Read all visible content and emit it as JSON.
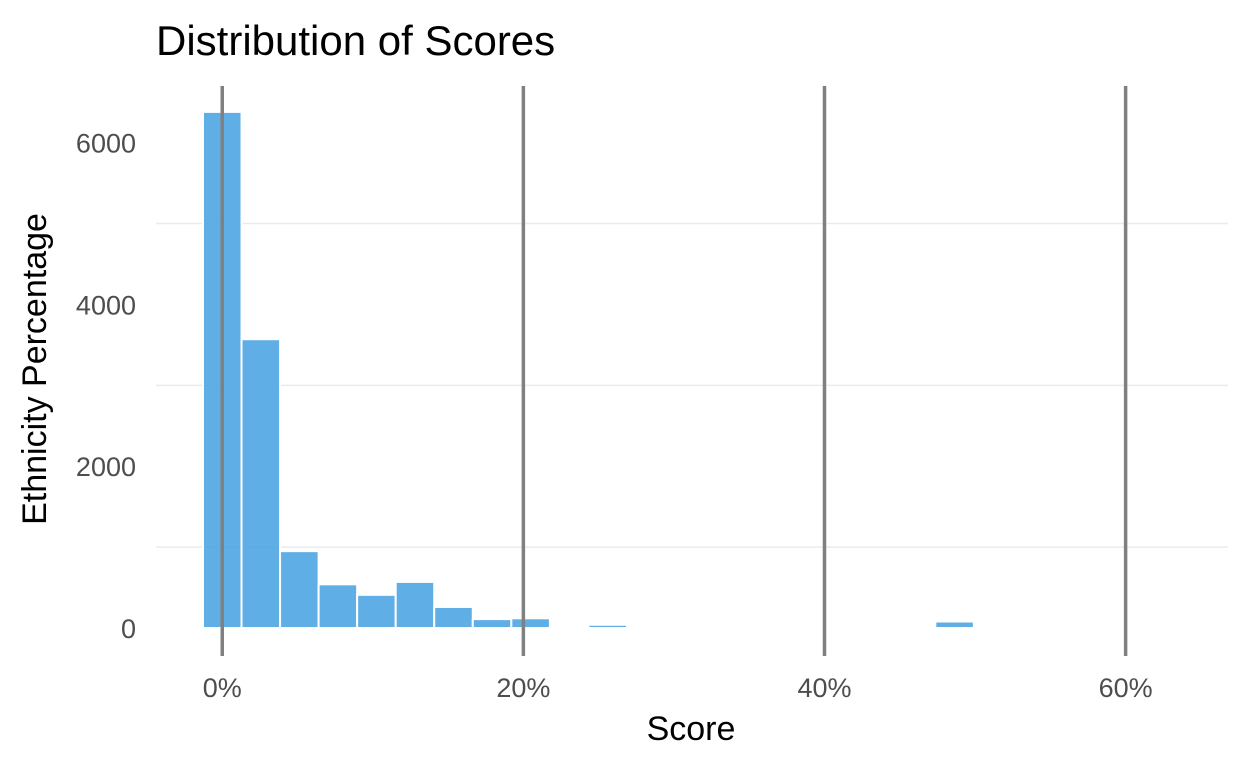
{
  "chart_data": {
    "type": "bar",
    "title": "Distribution of Scores",
    "xlabel": "Score",
    "ylabel": "Ethnicity Percentage",
    "x_ticks": [
      "0%",
      "20%",
      "40%",
      "60%"
    ],
    "x_tick_values": [
      0,
      20,
      40,
      60
    ],
    "y_ticks": [
      "0",
      "2000",
      "4000",
      "6000"
    ],
    "y_tick_values": [
      0,
      2000,
      4000,
      6000
    ],
    "xlim": [
      -4.4,
      66.8
    ],
    "ylim": [
      0,
      6700
    ],
    "bin_width": 2.56,
    "bins": [
      {
        "x": 0.0,
        "count": 6380
      },
      {
        "x": 2.56,
        "count": 3570
      },
      {
        "x": 5.12,
        "count": 950
      },
      {
        "x": 7.68,
        "count": 540
      },
      {
        "x": 10.24,
        "count": 410
      },
      {
        "x": 12.8,
        "count": 570
      },
      {
        "x": 15.36,
        "count": 260
      },
      {
        "x": 17.92,
        "count": 110
      },
      {
        "x": 20.48,
        "count": 120
      },
      {
        "x": 25.6,
        "count": 40
      },
      {
        "x": 48.64,
        "count": 80
      }
    ],
    "reference_lines": [
      0,
      20,
      40,
      60
    ],
    "grid": true,
    "colors": {
      "bar": "#4aa3e2",
      "reference_line": "#808080",
      "grid": "#ebebeb"
    }
  }
}
